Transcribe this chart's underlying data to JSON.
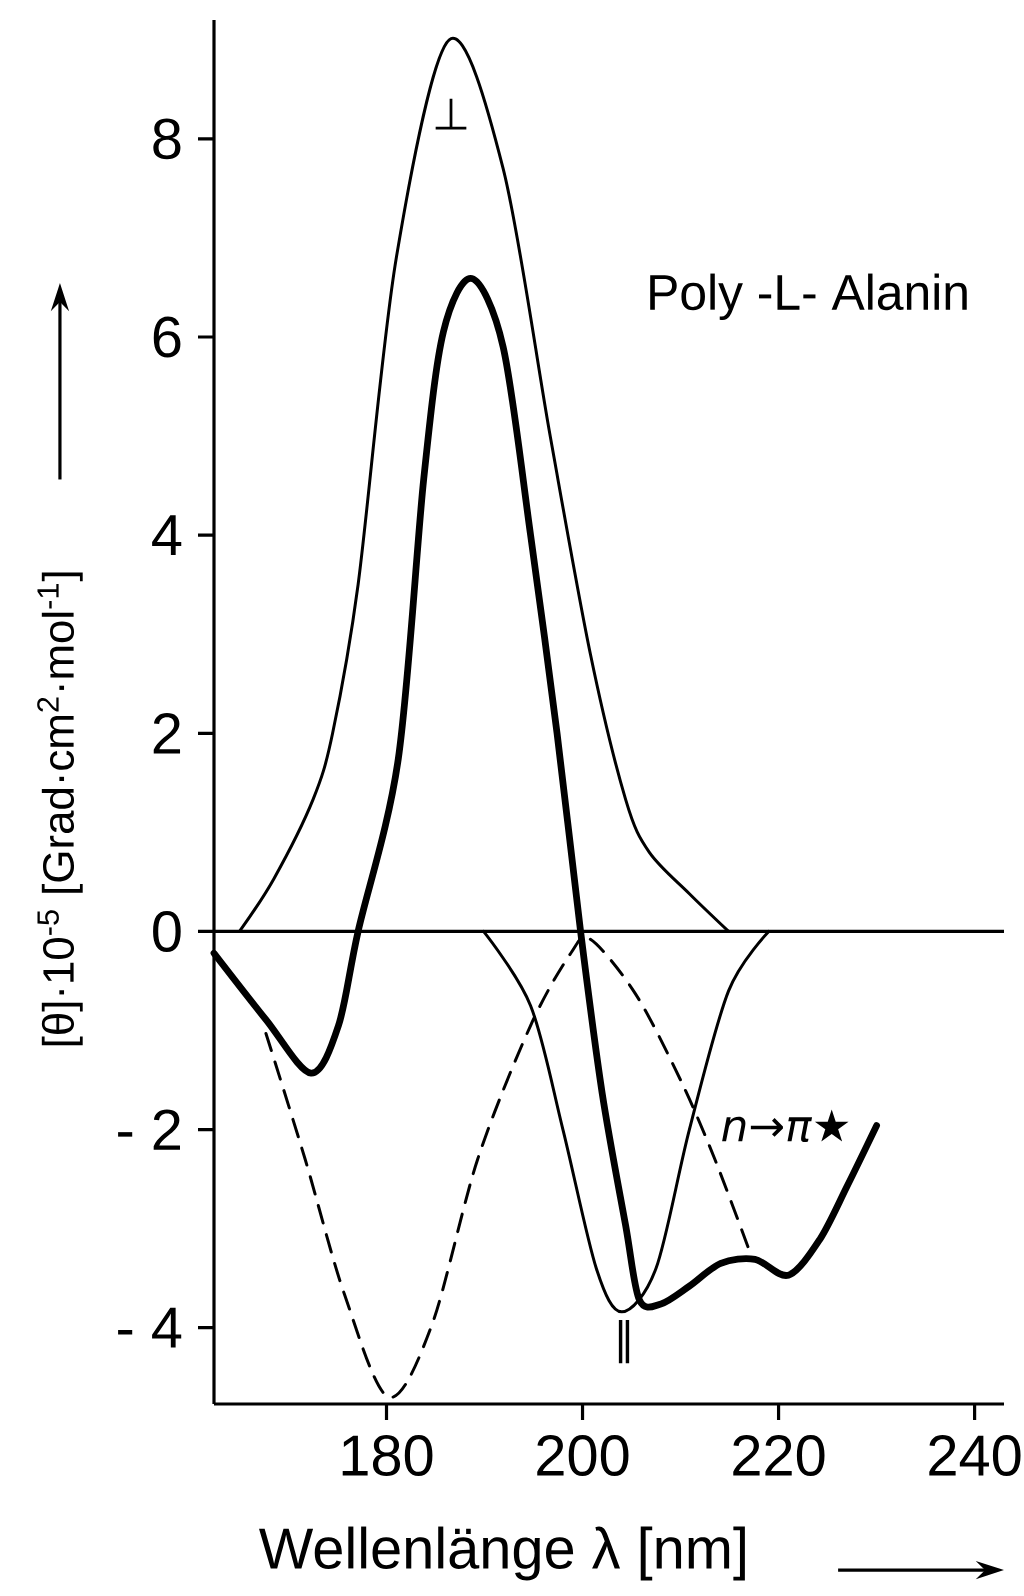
{
  "chart_data": {
    "type": "line",
    "xlabel": "Wellenlänge λ [nm]",
    "ylabel": "[θ]·10$^{-5}$  [Grad·cm$^{2}$·mol$^{-1}$]",
    "xlim": [
      162.4,
      243
    ],
    "ylim": [
      -4.77,
      9.2
    ],
    "xticks": [
      180,
      200,
      220,
      240
    ],
    "yticks": [
      {
        "value": -4,
        "label": "- 4"
      },
      {
        "value": -2,
        "label": "- 2"
      },
      0,
      2,
      4,
      6,
      8
    ],
    "grid": false,
    "marker": "none",
    "ref_lines": [
      {
        "axis": "y",
        "value": 0,
        "color": "#000000"
      }
    ],
    "series": [
      {
        "color": "#000000",
        "line_style": "solid",
        "x": [
          162.4,
          167.7,
          172.3,
          175.1,
          177.1,
          181.2,
          183.8,
          185.8,
          188.7,
          191.9,
          194.7,
          197.4,
          199.8,
          202,
          204.4,
          205.8,
          208,
          210.9,
          214.1,
          217.6,
          221,
          224.2,
          227,
          230
        ],
        "values": [
          -0.22,
          -0.89,
          -1.43,
          -0.95,
          0,
          1.74,
          4.57,
          6.05,
          6.59,
          5.9,
          4.0,
          2.0,
          0,
          -1.63,
          -2.97,
          -3.72,
          -3.76,
          -3.58,
          -3.35,
          -3.31,
          -3.47,
          -3.11,
          -2.57,
          -1.96
        ]
      },
      {
        "color": "#000000",
        "line_style": "solid",
        "x": [
          165,
          168.5,
          172.5,
          174.5,
          177.1,
          181,
          186.4,
          191.9,
          196.7,
          200.8,
          204.4,
          206.8,
          210.9,
          214.9
        ],
        "values": [
          0,
          0.53,
          1.33,
          2.0,
          3.5,
          6.8,
          9.0,
          7.7,
          5.0,
          2.8,
          1.33,
          0.8,
          0.38,
          0
        ]
      },
      {
        "color": "#000000",
        "line_style": "solid",
        "x": [
          189.9,
          194.7,
          198,
          201.4,
          204,
          207.5,
          210.9,
          214.9,
          219
        ],
        "values": [
          0,
          -0.75,
          -2.0,
          -3.4,
          -3.84,
          -3.4,
          -2.0,
          -0.6,
          0
        ]
      },
      {
        "color": "#000000",
        "line_style": "dashed",
        "x": [
          167.7,
          171.7,
          175.7,
          180.2,
          184.6,
          189.3,
          194.7,
          198.8,
          200.8,
          205.4,
          210,
          213.5,
          217.2
        ],
        "values": [
          -1.03,
          -2.3,
          -3.66,
          -4.7,
          -3.98,
          -2.3,
          -0.95,
          -0.22,
          -0.08,
          -0.63,
          -1.5,
          -2.3,
          -3.27
        ]
      }
    ],
    "annotations": [
      "Poly -L- Alanin",
      "⊥",
      "∥",
      "*n*→*π*★"
    ]
  }
}
